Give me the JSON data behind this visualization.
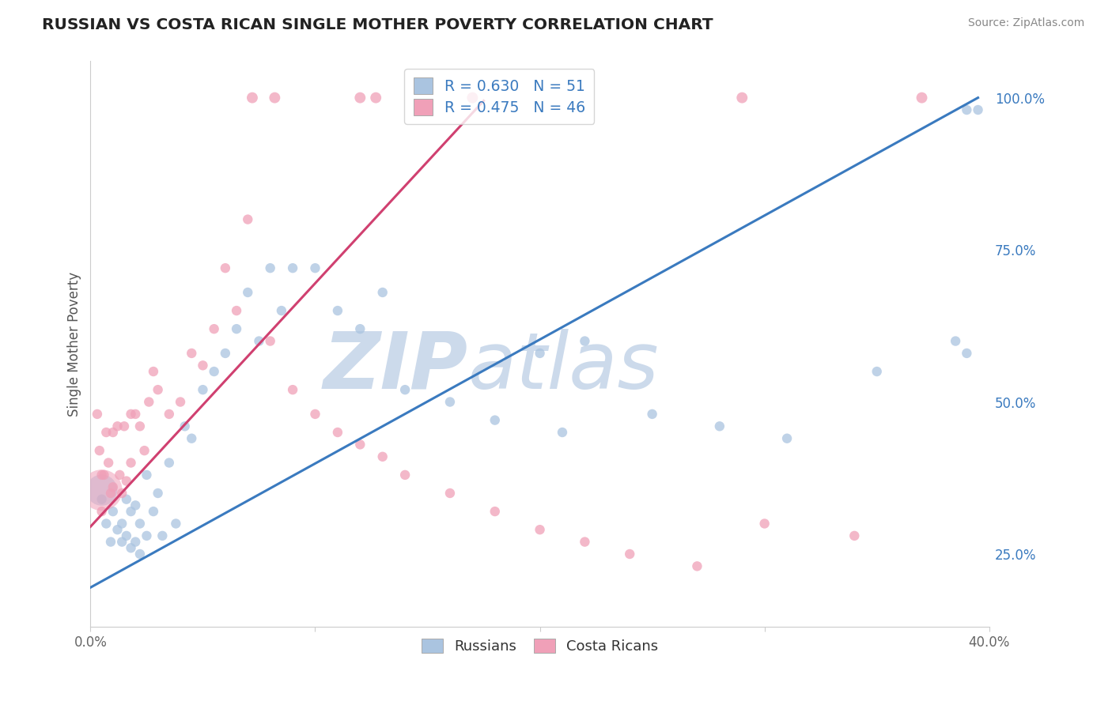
{
  "title": "RUSSIAN VS COSTA RICAN SINGLE MOTHER POVERTY CORRELATION CHART",
  "source": "Source: ZipAtlas.com",
  "ylabel": "Single Mother Poverty",
  "xlim": [
    0.0,
    0.4
  ],
  "ylim": [
    0.13,
    1.06
  ],
  "ytick_labels_right": [
    "25.0%",
    "50.0%",
    "75.0%",
    "100.0%"
  ],
  "ytick_vals_right": [
    0.25,
    0.5,
    0.75,
    1.0
  ],
  "legend_labels": [
    "Russians",
    "Costa Ricans"
  ],
  "blue_color": "#aac4e0",
  "pink_color": "#f0a0b8",
  "blue_line_color": "#3a7abf",
  "pink_line_color": "#d04070",
  "legend_text_color": "#3a7abf",
  "R_blue": "0.630",
  "N_blue": "51",
  "R_pink": "0.475",
  "N_pink": "46",
  "blue_scatter_x": [
    0.005,
    0.007,
    0.009,
    0.01,
    0.012,
    0.014,
    0.014,
    0.016,
    0.016,
    0.018,
    0.018,
    0.02,
    0.02,
    0.022,
    0.022,
    0.025,
    0.025,
    0.028,
    0.03,
    0.032,
    0.035,
    0.038,
    0.042,
    0.045,
    0.05,
    0.055,
    0.06,
    0.065,
    0.07,
    0.075,
    0.08,
    0.085,
    0.09,
    0.1,
    0.11,
    0.12,
    0.13,
    0.14,
    0.16,
    0.18,
    0.2,
    0.21,
    0.22,
    0.25,
    0.28,
    0.31,
    0.35,
    0.385,
    0.39,
    0.39,
    0.395
  ],
  "blue_scatter_y": [
    0.34,
    0.3,
    0.27,
    0.32,
    0.29,
    0.3,
    0.27,
    0.34,
    0.28,
    0.32,
    0.26,
    0.33,
    0.27,
    0.3,
    0.25,
    0.38,
    0.28,
    0.32,
    0.35,
    0.28,
    0.4,
    0.3,
    0.46,
    0.44,
    0.52,
    0.55,
    0.58,
    0.62,
    0.68,
    0.6,
    0.72,
    0.65,
    0.72,
    0.72,
    0.65,
    0.62,
    0.68,
    0.52,
    0.5,
    0.47,
    0.58,
    0.45,
    0.6,
    0.48,
    0.46,
    0.44,
    0.55,
    0.6,
    0.58,
    0.98,
    0.98
  ],
  "blue_scatter_size": [
    80,
    80,
    80,
    80,
    80,
    80,
    80,
    80,
    80,
    80,
    80,
    80,
    80,
    80,
    80,
    80,
    80,
    80,
    80,
    80,
    80,
    80,
    80,
    80,
    80,
    80,
    80,
    80,
    80,
    80,
    80,
    80,
    80,
    80,
    80,
    80,
    80,
    80,
    80,
    80,
    80,
    80,
    80,
    80,
    80,
    80,
    80,
    80,
    80,
    80,
    80
  ],
  "blue_big_x": [
    0.005
  ],
  "blue_big_y": [
    0.355
  ],
  "blue_big_size": [
    800
  ],
  "pink_scatter_x": [
    0.003,
    0.004,
    0.005,
    0.005,
    0.006,
    0.007,
    0.008,
    0.009,
    0.01,
    0.01,
    0.012,
    0.013,
    0.014,
    0.015,
    0.016,
    0.018,
    0.018,
    0.02,
    0.022,
    0.024,
    0.026,
    0.028,
    0.03,
    0.035,
    0.04,
    0.045,
    0.05,
    0.055,
    0.06,
    0.065,
    0.07,
    0.08,
    0.09,
    0.1,
    0.11,
    0.12,
    0.13,
    0.14,
    0.16,
    0.18,
    0.2,
    0.22,
    0.24,
    0.27,
    0.3,
    0.34
  ],
  "pink_scatter_y": [
    0.48,
    0.42,
    0.38,
    0.32,
    0.38,
    0.45,
    0.4,
    0.35,
    0.45,
    0.36,
    0.46,
    0.38,
    0.35,
    0.46,
    0.37,
    0.48,
    0.4,
    0.48,
    0.46,
    0.42,
    0.5,
    0.55,
    0.52,
    0.48,
    0.5,
    0.58,
    0.56,
    0.62,
    0.72,
    0.65,
    0.8,
    0.6,
    0.52,
    0.48,
    0.45,
    0.43,
    0.41,
    0.38,
    0.35,
    0.32,
    0.29,
    0.27,
    0.25,
    0.23,
    0.3,
    0.28
  ],
  "pink_scatter_size": [
    80,
    80,
    80,
    80,
    80,
    80,
    80,
    80,
    80,
    80,
    80,
    80,
    80,
    80,
    80,
    80,
    80,
    80,
    80,
    80,
    80,
    80,
    80,
    80,
    80,
    80,
    80,
    80,
    80,
    80,
    80,
    80,
    80,
    80,
    80,
    80,
    80,
    80,
    80,
    80,
    80,
    80,
    80,
    80,
    80,
    80
  ],
  "pink_big_x": [
    0.005
  ],
  "pink_big_y": [
    0.355
  ],
  "pink_big_size": [
    1400
  ],
  "top_pink_x": [
    0.072,
    0.082,
    0.12,
    0.127,
    0.17,
    0.29,
    0.37
  ],
  "top_pink_y": [
    1.0,
    1.0,
    1.0,
    1.0,
    1.0,
    1.0,
    1.0
  ],
  "blue_trend_x": [
    0.0,
    0.395
  ],
  "blue_trend_y": [
    0.195,
    1.0
  ],
  "pink_trend_x": [
    0.0,
    0.175
  ],
  "pink_trend_y": [
    0.295,
    0.995
  ],
  "watermark_zip": "ZIP",
  "watermark_atlas": "atlas",
  "watermark_color": "#ccdaeb",
  "grid_color": "#dddddd",
  "background_color": "#ffffff"
}
